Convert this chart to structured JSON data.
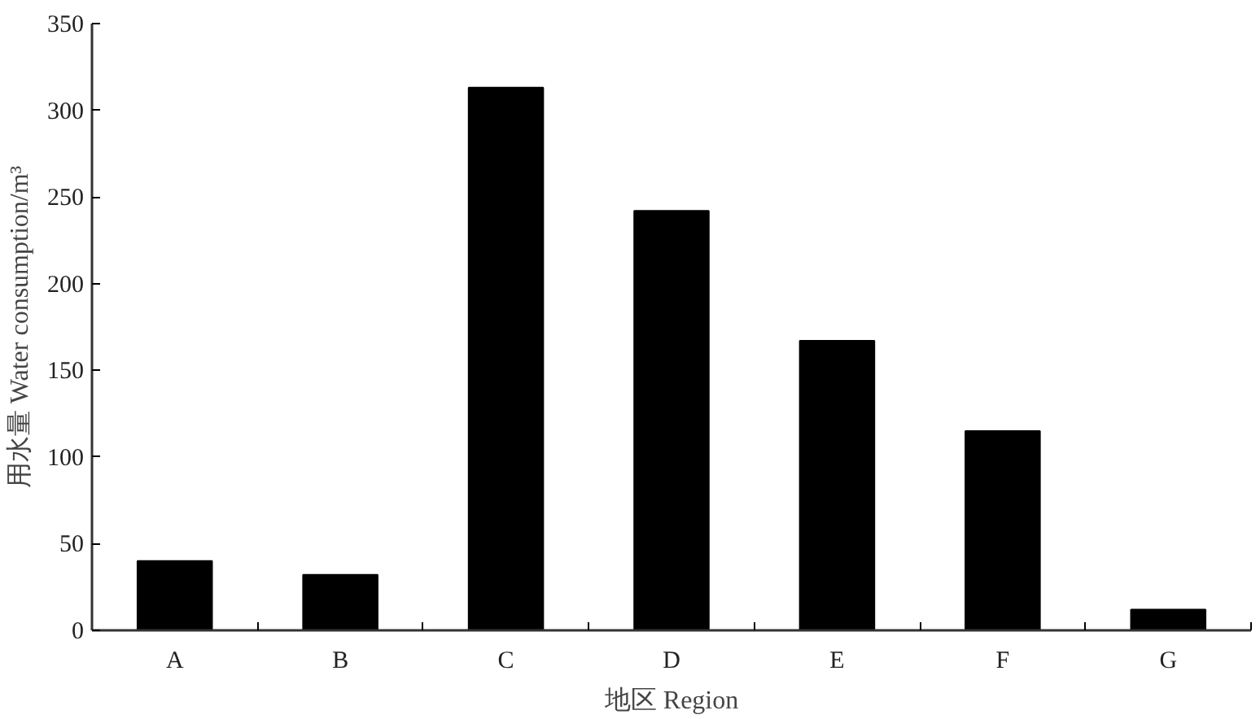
{
  "chart_data": {
    "type": "bar",
    "xlabel": "地区 Region",
    "ylabel": "用水量 Water consumption/m³",
    "categories": [
      "A",
      "B",
      "C",
      "D",
      "E",
      "F",
      "G"
    ],
    "values": [
      40,
      32,
      313,
      242,
      167,
      115,
      12
    ],
    "color": "#000000",
    "ylim": [
      0,
      350
    ],
    "yticks": [
      0,
      50,
      100,
      150,
      200,
      250,
      300,
      350
    ],
    "grid": false
  }
}
